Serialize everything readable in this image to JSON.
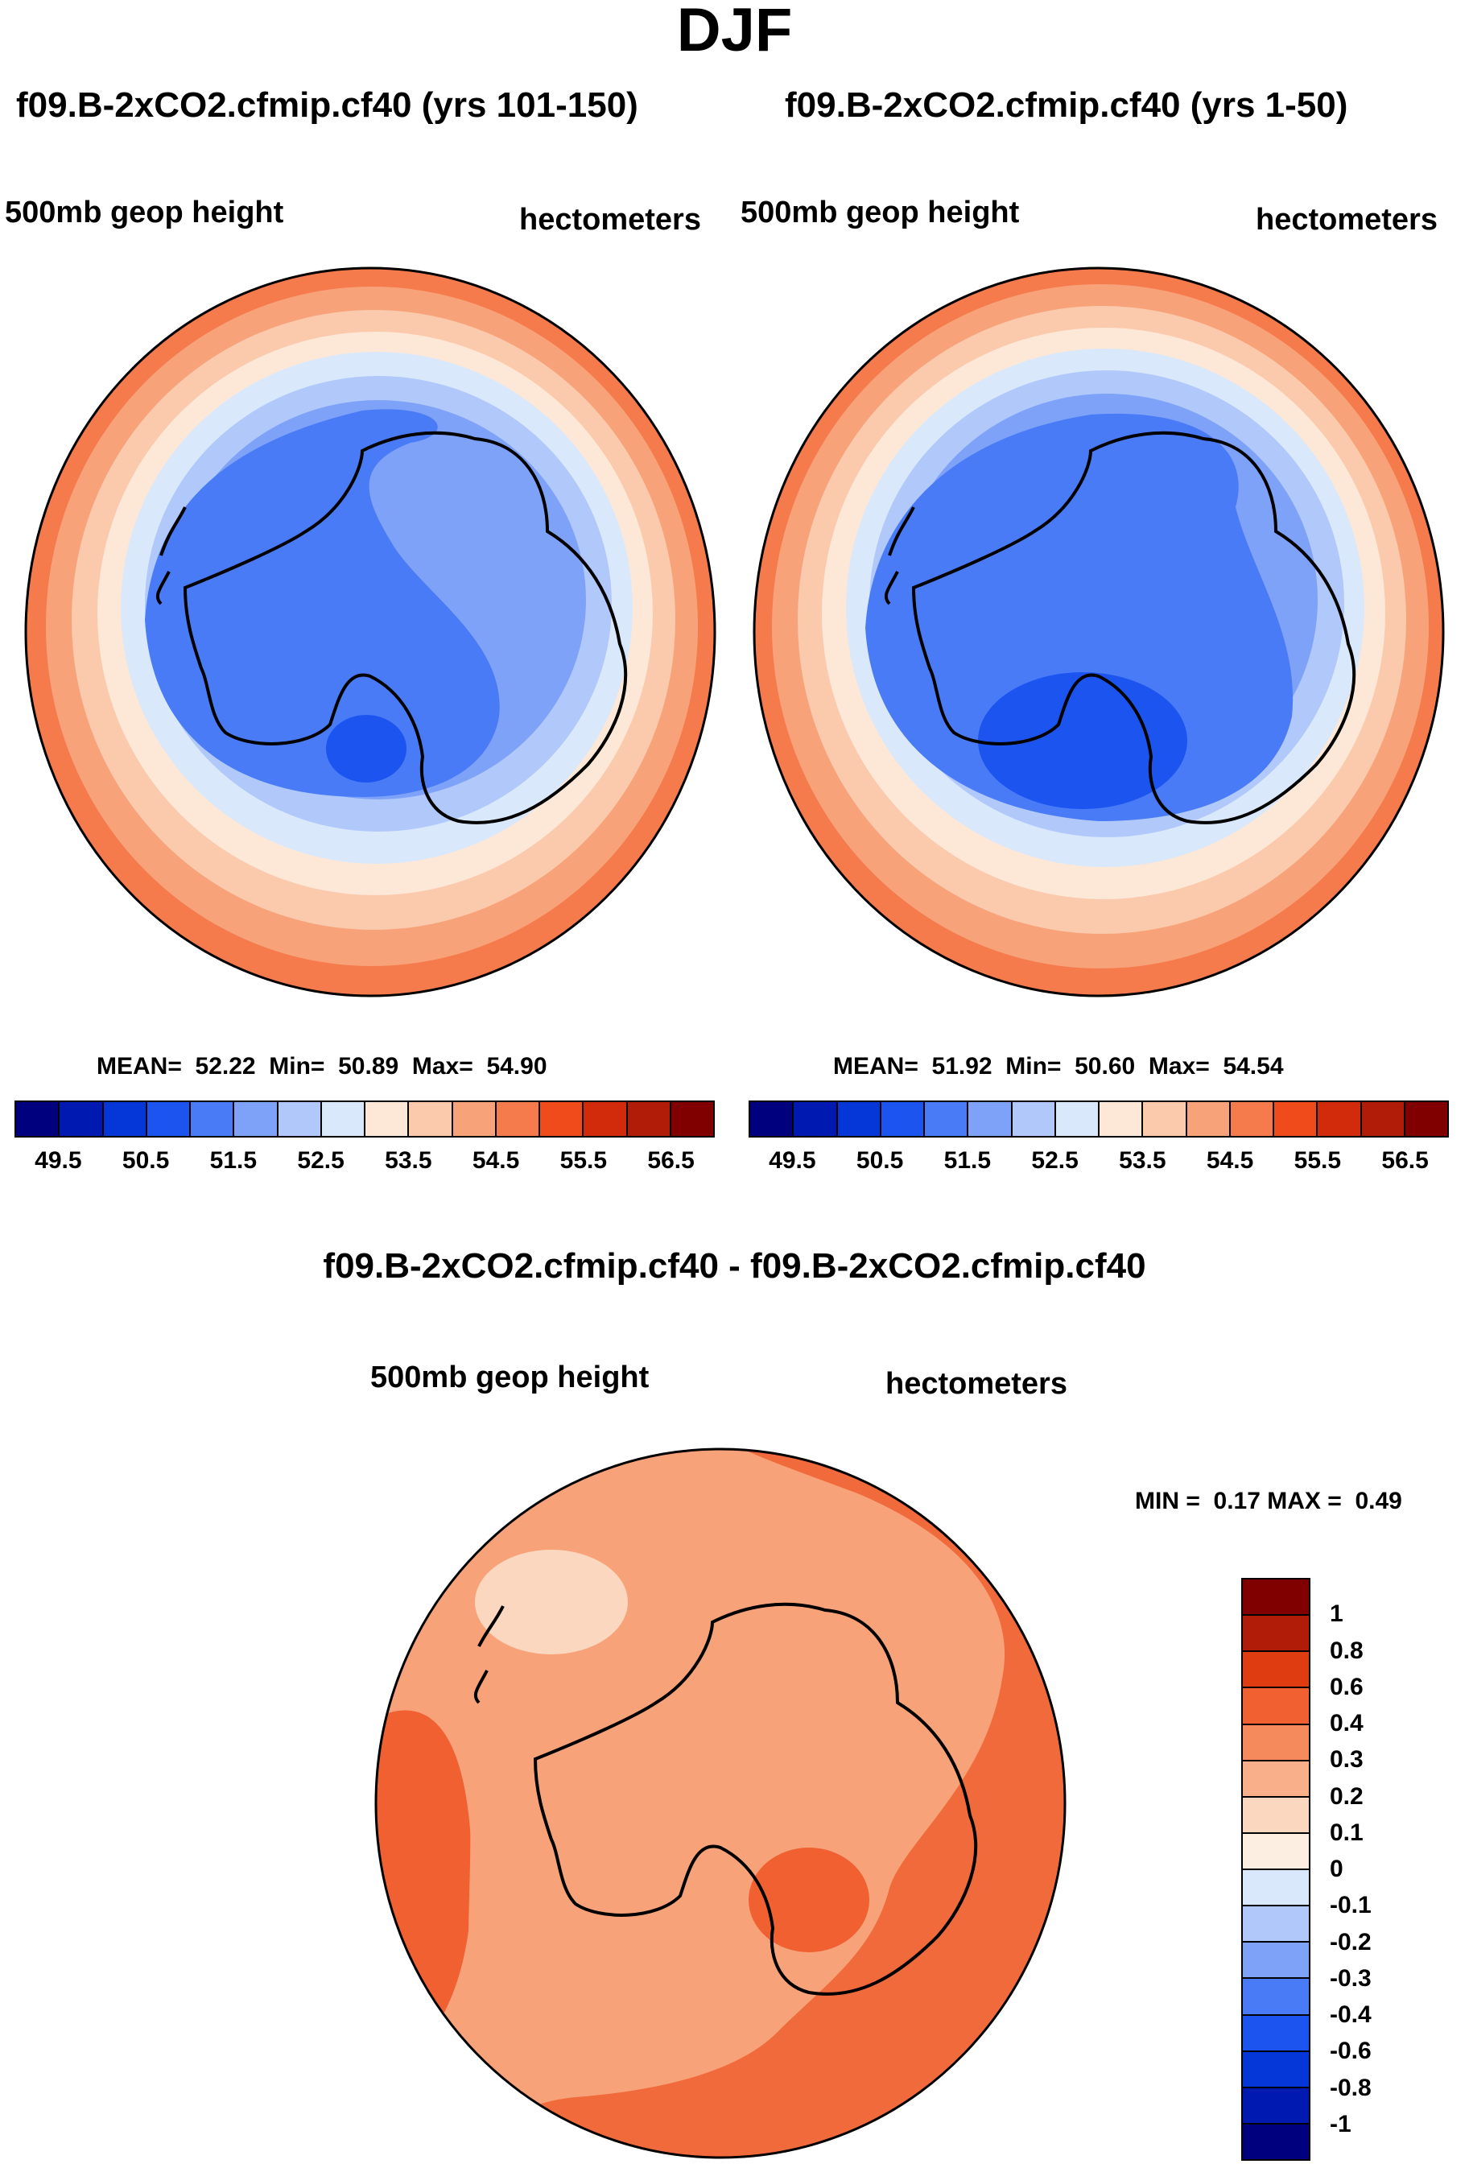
{
  "title": "DJF",
  "panels": [
    {
      "title": "f09.B-2xCO2.cfmip.cf40 (yrs 101-150)",
      "field": "500mb geop height",
      "units": "hectometers",
      "stats": {
        "mean_label": "MEAN=",
        "mean": "52.22",
        "min_label": "Min=",
        "min": "50.89",
        "max_label": "Max=",
        "max": "54.90"
      }
    },
    {
      "title": "f09.B-2xCO2.cfmip.cf40 (yrs 1-50)",
      "field": "500mb geop height",
      "units": "hectometers",
      "stats": {
        "mean_label": "MEAN=",
        "mean": "51.92",
        "min_label": "Min=",
        "min": "50.60",
        "max_label": "Max=",
        "max": "54.54"
      }
    }
  ],
  "diff_panel": {
    "title": "f09.B-2xCO2.cfmip.cf40 - f09.B-2xCO2.cfmip.cf40",
    "field": "500mb geop height",
    "units": "hectometers",
    "stats": {
      "min_label": "MIN =",
      "min": "0.17",
      "max_label": "MAX =",
      "max": "0.49"
    }
  },
  "colorbar_top": {
    "colors": [
      "#00007f",
      "#0019b0",
      "#0536d8",
      "#1c54f0",
      "#4a7bf6",
      "#7ea2f8",
      "#b0c8fa",
      "#d9e8fb",
      "#fde7d7",
      "#fbc9ab",
      "#f8a27a",
      "#f57a4c",
      "#ef4b1b",
      "#d22b0c",
      "#b01c08",
      "#800000"
    ],
    "tick_labels": [
      "49.5",
      "50.5",
      "51.5",
      "52.5",
      "53.5",
      "54.5",
      "55.5",
      "56.5"
    ]
  },
  "colorbar_diff": {
    "colors": [
      "#800000",
      "#b01c08",
      "#e03c12",
      "#f06030",
      "#f58a5c",
      "#f9b08a",
      "#fcd7c0",
      "#fdeee2",
      "#d9e8fb",
      "#b0c8fa",
      "#7ea2f8",
      "#4a7bf6",
      "#1c54f0",
      "#0536d8",
      "#0019b0",
      "#00007f"
    ],
    "tick_labels": [
      "1",
      "0.8",
      "0.6",
      "0.4",
      "0.3",
      "0.2",
      "0.1",
      "0",
      "-0.1",
      "-0.2",
      "-0.3",
      "-0.4",
      "-0.6",
      "-0.8",
      "-1"
    ]
  },
  "map_fills": {
    "left": [
      "#f57a4c",
      "#f8a27a",
      "#fbc9ab",
      "#fde7d7",
      "#d9e8fb",
      "#b0c8fa",
      "#7ea2f8",
      "#4a7bf6",
      "#1c54f0"
    ],
    "right": [
      "#f57a4c",
      "#f8a27a",
      "#fbc9ab",
      "#fde7d7",
      "#d9e8fb",
      "#b0c8fa",
      "#7ea2f8",
      "#4a7bf6",
      "#1c54f0"
    ],
    "diff_base": "#f8a27a",
    "diff_dark": "#f06030",
    "diff_light": "#fcd7c0"
  }
}
